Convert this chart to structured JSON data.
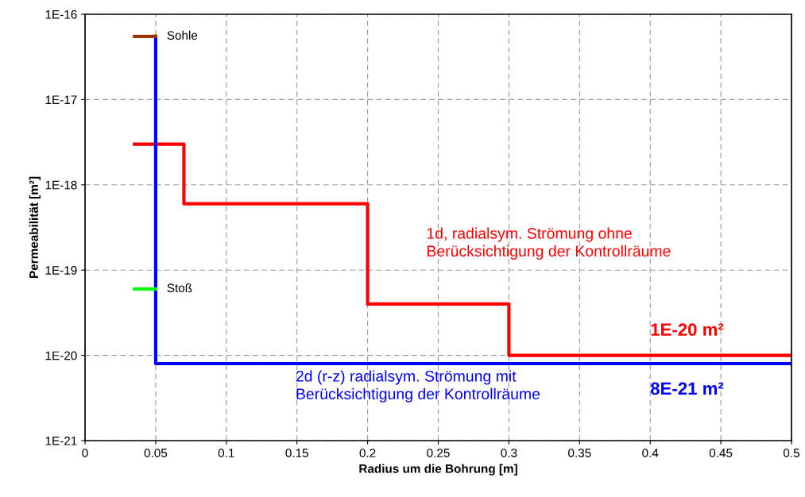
{
  "chart_data": {
    "type": "line",
    "xlabel": "Radius um die Bohrung [m]",
    "ylabel": "Permeabilität [m²]",
    "log": "y",
    "grid": true,
    "line_style": "solid",
    "marker": "none",
    "xlim": [
      0,
      0.5
    ],
    "xticks": [
      0,
      0.05,
      0.1,
      0.15,
      0.2,
      0.25,
      0.3,
      0.35,
      0.4,
      0.45,
      0.5
    ],
    "ylim": [
      1e-21,
      1e-16
    ],
    "yticks": [
      {
        "value": 1e-21,
        "label": "1E-21"
      },
      {
        "value": 1e-20,
        "label": "1E-20"
      },
      {
        "value": 1e-19,
        "label": "1E-19"
      },
      {
        "value": 1e-18,
        "label": "1E-18"
      },
      {
        "value": 1e-17,
        "label": "1E-17"
      },
      {
        "value": 1e-16,
        "label": "1E-16"
      }
    ],
    "series": [
      {
        "name": "1d, radialsym. Strömung ohne\nBerücksichtigung der Kontrollräume",
        "type": "step",
        "color": "#ff0000",
        "x": [
          0.035,
          0.07,
          0.2,
          0.3,
          0.5
        ],
        "values": [
          3e-18,
          6e-19,
          4e-20,
          1e-20,
          1e-20
        ]
      },
      {
        "name": "2d (r-z) radialsym. Strömung mit\nBerücksichtigung der Kontrollräume",
        "color": "#0000ff",
        "x": [
          0.05,
          0.05,
          0.5
        ],
        "values": [
          5.5e-17,
          8e-21,
          8e-21
        ]
      },
      {
        "name": "Sohle",
        "color": "#993300",
        "x": [
          0.035,
          0.05
        ],
        "values": [
          5.5e-17,
          5.5e-17
        ]
      },
      {
        "name": "Stoß",
        "color": "#00ff00",
        "x": [
          0.035,
          0.05
        ],
        "values": [
          6e-20,
          6e-20
        ]
      }
    ],
    "annotations": [
      {
        "text": "1E-20 m²",
        "y": 1e-20
      },
      {
        "text": "8E-21 m²",
        "y": 8e-21
      }
    ]
  }
}
